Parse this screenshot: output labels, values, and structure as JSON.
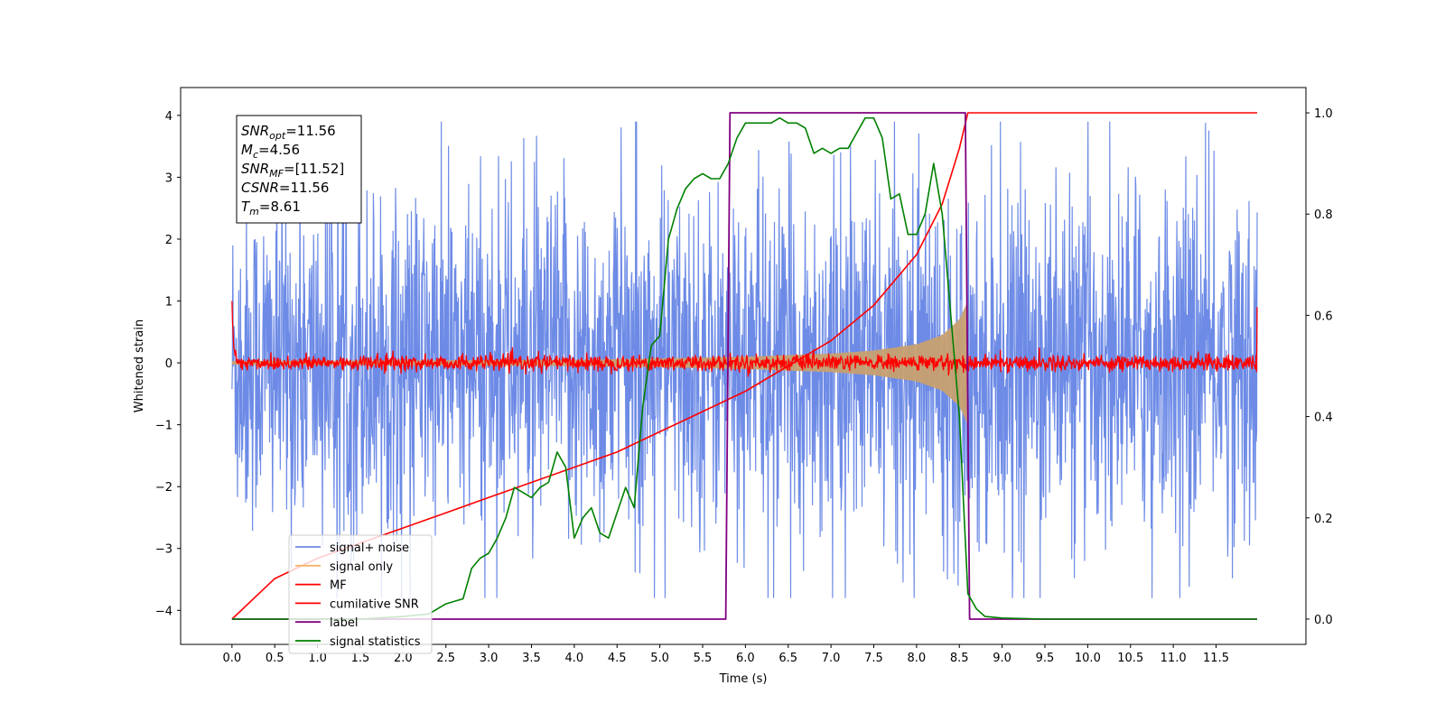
{
  "chart_data": {
    "type": "line",
    "xlabel": "Time (s)",
    "ylabel": "Whitened strain",
    "xlim": [
      -0.6,
      12.55
    ],
    "ylim": [
      -4.55,
      4.45
    ],
    "y2lim": [
      -0.05,
      1.05
    ],
    "xticks": [
      0.0,
      0.5,
      1.0,
      1.5,
      2.0,
      2.5,
      3.0,
      3.5,
      4.0,
      4.5,
      5.0,
      5.5,
      6.0,
      6.5,
      7.0,
      7.5,
      8.0,
      8.5,
      9.0,
      9.5,
      10.0,
      10.5,
      11.0,
      11.5
    ],
    "xtick_labels": [
      "0.0",
      "0.5",
      "1.0",
      "1.5",
      "2.0",
      "2.5",
      "3.0",
      "3.5",
      "4.0",
      "4.5",
      "5.0",
      "5.5",
      "6.0",
      "6.5",
      "7.0",
      "7.5",
      "8.0",
      "8.5",
      "9.0",
      "9.5",
      "10.0",
      "10.5",
      "11.0",
      "11.5"
    ],
    "yticks": [
      -4,
      -3,
      -2,
      -1,
      0,
      1,
      2,
      3,
      4
    ],
    "ytick_labels": [
      "−4",
      "−3",
      "−2",
      "−1",
      "0",
      "1",
      "2",
      "3",
      "4"
    ],
    "y2ticks": [
      0.0,
      0.2,
      0.4,
      0.6,
      0.8,
      1.0
    ],
    "y2tick_labels": [
      "0.0",
      "0.2",
      "0.4",
      "0.6",
      "0.8",
      "1.0"
    ],
    "legend_position": "lower-left",
    "grid": false,
    "series": [
      {
        "name": "signal+ noise",
        "color": "#6d8be6",
        "axis": "left",
        "kind": "noise",
        "x_range": [
          0.0,
          11.98
        ],
        "typical_amplitude": [
          -1.3,
          1.3
        ],
        "peak_range": [
          -3.8,
          3.9
        ]
      },
      {
        "name": "signal only",
        "color": "#f5b36b",
        "axis": "left",
        "kind": "chirp-envelope",
        "x": [
          0.0,
          4.0,
          5.0,
          6.0,
          7.0,
          7.5,
          8.0,
          8.3,
          8.5,
          8.6
        ],
        "envelope": [
          0.03,
          0.05,
          0.07,
          0.1,
          0.15,
          0.2,
          0.3,
          0.45,
          0.7,
          1.0
        ]
      },
      {
        "name": "MF",
        "color": "#ff0000",
        "axis": "left",
        "kind": "noise",
        "x_range": [
          0.0,
          11.98
        ],
        "typical_amplitude": [
          -0.12,
          0.12
        ],
        "start_value": 1.0,
        "end_value": 0.9
      },
      {
        "name": "cumilative SNR",
        "color": "#ff0000",
        "axis": "right",
        "x": [
          0.0,
          0.5,
          1.0,
          1.5,
          2.0,
          2.5,
          3.0,
          3.5,
          4.0,
          4.5,
          5.0,
          5.5,
          6.0,
          6.5,
          7.0,
          7.5,
          8.0,
          8.3,
          8.5,
          8.6,
          11.98
        ],
        "y": [
          0.0,
          0.08,
          0.12,
          0.15,
          0.18,
          0.21,
          0.24,
          0.27,
          0.3,
          0.33,
          0.37,
          0.41,
          0.45,
          0.5,
          0.55,
          0.62,
          0.72,
          0.82,
          0.93,
          1.0,
          1.0
        ]
      },
      {
        "name": "label",
        "color": "#800080",
        "axis": "right",
        "x": [
          0.0,
          5.77,
          5.82,
          8.57,
          8.62,
          11.98
        ],
        "y": [
          0.0,
          0.0,
          1.0,
          1.0,
          0.0,
          0.0
        ]
      },
      {
        "name": "signal statistics",
        "color": "#008000",
        "axis": "right",
        "x": [
          0.0,
          0.5,
          1.0,
          1.5,
          2.0,
          2.3,
          2.5,
          2.7,
          2.8,
          2.9,
          3.0,
          3.1,
          3.2,
          3.3,
          3.4,
          3.5,
          3.6,
          3.7,
          3.8,
          3.9,
          4.0,
          4.1,
          4.2,
          4.3,
          4.4,
          4.5,
          4.6,
          4.7,
          4.8,
          4.9,
          5.0,
          5.1,
          5.2,
          5.3,
          5.4,
          5.5,
          5.6,
          5.7,
          5.8,
          5.9,
          6.0,
          6.1,
          6.2,
          6.3,
          6.4,
          6.5,
          6.6,
          6.7,
          6.8,
          6.9,
          7.0,
          7.1,
          7.2,
          7.3,
          7.4,
          7.5,
          7.6,
          7.7,
          7.8,
          7.9,
          8.0,
          8.1,
          8.2,
          8.3,
          8.4,
          8.5,
          8.6,
          8.7,
          8.8,
          9.0,
          9.5,
          10.0,
          11.0,
          11.98
        ],
        "y": [
          0.0,
          0.0,
          0.0,
          0.0,
          0.005,
          0.01,
          0.03,
          0.04,
          0.1,
          0.12,
          0.13,
          0.16,
          0.2,
          0.26,
          0.25,
          0.24,
          0.26,
          0.27,
          0.33,
          0.3,
          0.16,
          0.2,
          0.22,
          0.17,
          0.16,
          0.21,
          0.26,
          0.22,
          0.42,
          0.54,
          0.56,
          0.75,
          0.81,
          0.85,
          0.87,
          0.88,
          0.87,
          0.87,
          0.9,
          0.95,
          0.98,
          0.98,
          0.98,
          0.98,
          0.99,
          0.98,
          0.98,
          0.97,
          0.92,
          0.93,
          0.92,
          0.93,
          0.93,
          0.96,
          0.99,
          0.99,
          0.95,
          0.83,
          0.84,
          0.76,
          0.76,
          0.8,
          0.9,
          0.8,
          0.6,
          0.4,
          0.05,
          0.02,
          0.005,
          0.002,
          0.0,
          0.0,
          0.0,
          0.0
        ]
      }
    ],
    "annotations": [
      {
        "math": "SNR",
        "sub": "opt",
        "rest": "=11.56"
      },
      {
        "math": "M",
        "sub": "c",
        "rest": "=4.56"
      },
      {
        "math": "SNR",
        "sub": "MF",
        "rest": "=[11.52]"
      },
      {
        "math": "CSNR",
        "sub": "",
        "rest": "=11.56"
      },
      {
        "math": "T",
        "sub": "m",
        "rest": "=8.61"
      }
    ]
  }
}
